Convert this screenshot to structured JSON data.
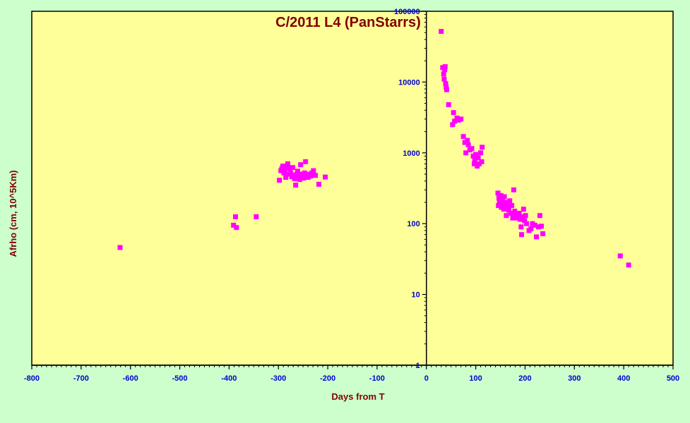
{
  "chart_data": {
    "type": "scatter",
    "title": "C/2011 L4 (PanStarrs)",
    "xlabel": "Days from  T",
    "ylabel": "Afrho (cm, 10^5Km)",
    "xlim": [
      -800,
      500
    ],
    "ylim": [
      1,
      100000
    ],
    "y_scale": "log",
    "x_ticks": [
      -800,
      -700,
      -600,
      -500,
      -400,
      -300,
      -200,
      -100,
      0,
      100,
      200,
      300,
      400,
      500
    ],
    "y_ticks": [
      1,
      10,
      100,
      1000,
      10000,
      100000
    ],
    "grid": false,
    "colors": {
      "plot_bg": "#ffff99",
      "page_bg": "#ccffcc",
      "marker": "#ff00ff",
      "title": "#800000",
      "ticks": "#0000cc"
    },
    "series": [
      {
        "points": [
          [
            -621,
            46
          ],
          [
            -391,
            95
          ],
          [
            -385,
            88
          ],
          [
            -387,
            125
          ],
          [
            -345,
            125
          ],
          [
            -298,
            410
          ],
          [
            -295,
            560
          ],
          [
            -293,
            600
          ],
          [
            -291,
            650
          ],
          [
            -289,
            520
          ],
          [
            -287,
            580
          ],
          [
            -285,
            450
          ],
          [
            -283,
            640
          ],
          [
            -281,
            700
          ],
          [
            -279,
            500
          ],
          [
            -277,
            600
          ],
          [
            -275,
            520
          ],
          [
            -273,
            460
          ],
          [
            -271,
            620
          ],
          [
            -269,
            480
          ],
          [
            -267,
            430
          ],
          [
            -265,
            350
          ],
          [
            -263,
            500
          ],
          [
            -261,
            550
          ],
          [
            -259,
            470
          ],
          [
            -257,
            420
          ],
          [
            -255,
            680
          ],
          [
            -253,
            460
          ],
          [
            -251,
            500
          ],
          [
            -249,
            440
          ],
          [
            -247,
            520
          ],
          [
            -245,
            750
          ],
          [
            -243,
            480
          ],
          [
            -240,
            450
          ],
          [
            -237,
            500
          ],
          [
            -235,
            470
          ],
          [
            -232,
            520
          ],
          [
            -229,
            560
          ],
          [
            -225,
            480
          ],
          [
            -218,
            360
          ],
          [
            -205,
            455
          ],
          [
            30,
            52000
          ],
          [
            33,
            16000
          ],
          [
            35,
            13000
          ],
          [
            36,
            11000
          ],
          [
            37,
            15000
          ],
          [
            38,
            16500
          ],
          [
            39,
            9500
          ],
          [
            40,
            8500
          ],
          [
            41,
            7800
          ],
          [
            45,
            4800
          ],
          [
            53,
            2500
          ],
          [
            55,
            3700
          ],
          [
            57,
            2800
          ],
          [
            62,
            3100
          ],
          [
            65,
            2900
          ],
          [
            70,
            3000
          ],
          [
            75,
            1700
          ],
          [
            78,
            1400
          ],
          [
            80,
            1000
          ],
          [
            83,
            1500
          ],
          [
            85,
            1300
          ],
          [
            88,
            1100
          ],
          [
            92,
            1150
          ],
          [
            95,
            900
          ],
          [
            97,
            700
          ],
          [
            98,
            800
          ],
          [
            100,
            950
          ],
          [
            103,
            650
          ],
          [
            105,
            850
          ],
          [
            107,
            700
          ],
          [
            110,
            1000
          ],
          [
            112,
            750
          ],
          [
            113,
            1200
          ],
          [
            145,
            270
          ],
          [
            146,
            180
          ],
          [
            147,
            230
          ],
          [
            148,
            210
          ],
          [
            150,
            200
          ],
          [
            151,
            250
          ],
          [
            152,
            170
          ],
          [
            154,
            220
          ],
          [
            155,
            190
          ],
          [
            157,
            160
          ],
          [
            158,
            240
          ],
          [
            160,
            180
          ],
          [
            162,
            130
          ],
          [
            163,
            200
          ],
          [
            165,
            175
          ],
          [
            167,
            155
          ],
          [
            169,
            210
          ],
          [
            171,
            140
          ],
          [
            173,
            180
          ],
          [
            175,
            120
          ],
          [
            177,
            300
          ],
          [
            179,
            150
          ],
          [
            181,
            135
          ],
          [
            183,
            130
          ],
          [
            185,
            120
          ],
          [
            188,
            140
          ],
          [
            190,
            115
          ],
          [
            192,
            90
          ],
          [
            193,
            70
          ],
          [
            195,
            125
          ],
          [
            197,
            160
          ],
          [
            199,
            110
          ],
          [
            201,
            130
          ],
          [
            203,
            100
          ],
          [
            208,
            80
          ],
          [
            212,
            85
          ],
          [
            215,
            100
          ],
          [
            220,
            95
          ],
          [
            223,
            65
          ],
          [
            227,
            90
          ],
          [
            230,
            130
          ],
          [
            233,
            92
          ],
          [
            236,
            72
          ],
          [
            393,
            35
          ],
          [
            410,
            26
          ]
        ]
      }
    ]
  }
}
